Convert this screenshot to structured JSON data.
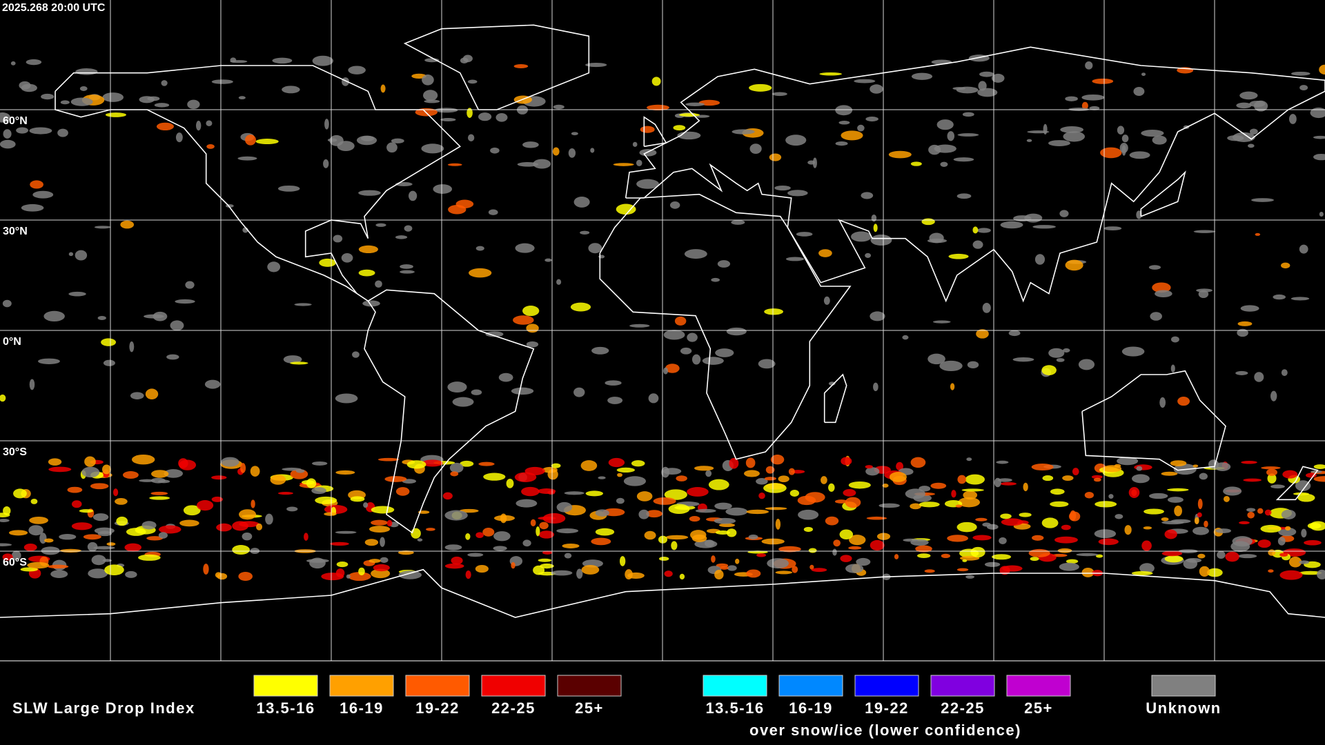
{
  "header": {
    "timestamp": "2025.268 20:00 UTC"
  },
  "map": {
    "lat_labels": [
      "60°N",
      "30°N",
      "0°N",
      "30°S",
      "60°S"
    ]
  },
  "legend": {
    "title": "SLW Large Drop Index",
    "liquid": [
      {
        "label": "13.5-16",
        "color": "#ffff00"
      },
      {
        "label": "16-19",
        "color": "#ffa000"
      },
      {
        "label": "19-22",
        "color": "#ff5a00"
      },
      {
        "label": "22-25",
        "color": "#f00000"
      },
      {
        "label": "25+",
        "color": "#5a0000"
      }
    ],
    "snow_ice": [
      {
        "label": "13.5-16",
        "color": "#00ffff"
      },
      {
        "label": "16-19",
        "color": "#0088ff"
      },
      {
        "label": "19-22",
        "color": "#0000ff"
      },
      {
        "label": "22-25",
        "color": "#8000e0"
      },
      {
        "label": "25+",
        "color": "#c000d0"
      }
    ],
    "snow_ice_note": "over snow/ice (lower confidence)",
    "unknown": {
      "label": "Unknown",
      "color": "#808080"
    }
  }
}
